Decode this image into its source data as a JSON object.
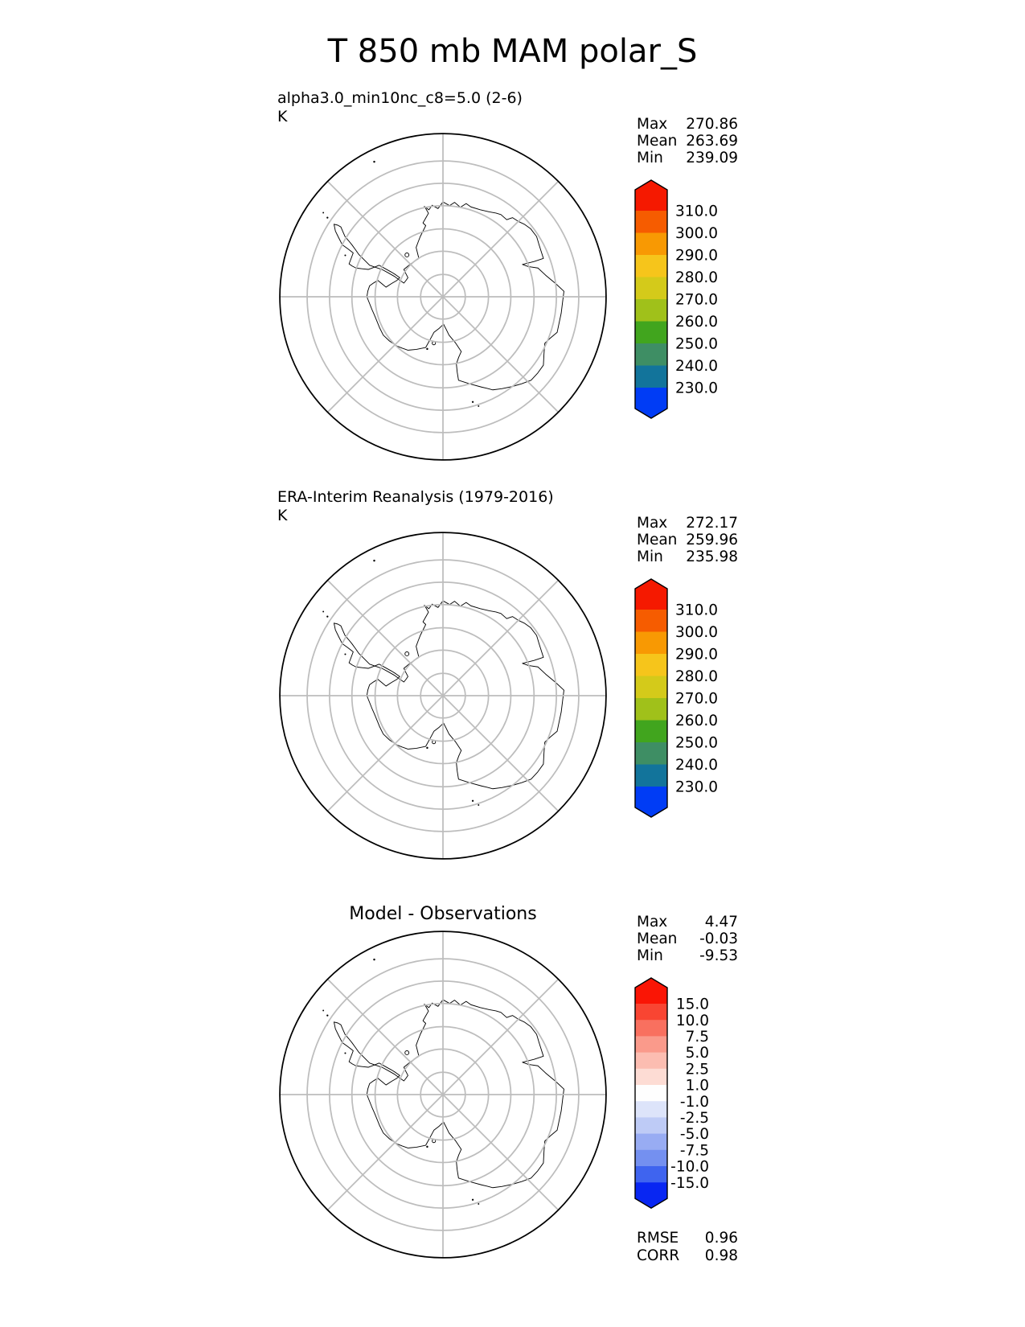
{
  "title": "T 850 mb MAM polar_S",
  "colors": {
    "background": "#ffffff",
    "gridline": "#bdbdbd",
    "coastline": "#000000",
    "temp_scale": [
      "#F51900",
      "#F65C00",
      "#F89903",
      "#F6C51B",
      "#D4CA1A",
      "#A0C11A",
      "#41A51E",
      "#3E8E64",
      "#12749B",
      "#003CF5"
    ],
    "diff_scale": [
      "#FA1505",
      "#F94532",
      "#F9705F",
      "#FA9A8B",
      "#FCBDB1",
      "#FDDCD4",
      "#FEFEFE",
      "#DDE4FA",
      "#BECBF6",
      "#98ACF3",
      "#7490F0",
      "#3F64EF",
      "#0826F2"
    ]
  },
  "panels": [
    {
      "label": "alpha3.0_min10nc_c8=5.0 (2-6)",
      "units": "K",
      "stats": [
        {
          "label": "Max",
          "value": "270.86"
        },
        {
          "label": "Mean",
          "value": "263.69"
        },
        {
          "label": "Min",
          "value": "239.09"
        }
      ],
      "colorbar_ticks": [
        "310.0",
        "300.0",
        "290.0",
        "280.0",
        "270.0",
        "260.0",
        "250.0",
        "240.0",
        "230.0"
      ]
    },
    {
      "label": "ERA-Interim Reanalysis (1979-2016)",
      "units": "K",
      "stats": [
        {
          "label": "Max",
          "value": "272.17"
        },
        {
          "label": "Mean",
          "value": "259.96"
        },
        {
          "label": "Min",
          "value": "235.98"
        }
      ],
      "colorbar_ticks": [
        "310.0",
        "300.0",
        "290.0",
        "280.0",
        "270.0",
        "260.0",
        "250.0",
        "240.0",
        "230.0"
      ]
    },
    {
      "label": "Model - Observations",
      "units": "",
      "stats": [
        {
          "label": "Max",
          "value": "4.47"
        },
        {
          "label": "Mean",
          "value": "-0.03"
        },
        {
          "label": "Min",
          "value": "-9.53"
        }
      ],
      "colorbar_ticks": [
        "15.0",
        "10.0",
        "7.5",
        "5.0",
        "2.5",
        "1.0",
        "-1.0",
        "-2.5",
        "-5.0",
        "-7.5",
        "-10.0",
        "-15.0"
      ]
    }
  ],
  "metrics": [
    {
      "label": "RMSE",
      "value": "0.96"
    },
    {
      "label": "CORR",
      "value": "0.98"
    }
  ],
  "chart_data": [
    {
      "type": "map",
      "projection_view": "south polar stereographic, Antarctica coastline with latitude circles and 45-degree longitude spokes",
      "title": "alpha3.0_min10nc_c8=5.0 (2-6)",
      "units": "K",
      "statistics": {
        "max": 270.86,
        "mean": 263.69,
        "min": 239.09
      },
      "colorbar_levels": [
        310.0,
        300.0,
        290.0,
        280.0,
        270.0,
        260.0,
        250.0,
        240.0,
        230.0
      ],
      "colorbar_style": "rainbow red-to-blue, extended arrows both ends"
    },
    {
      "type": "map",
      "projection_view": "south polar stereographic, Antarctica coastline with latitude circles and 45-degree longitude spokes",
      "title": "ERA-Interim Reanalysis (1979-2016)",
      "units": "K",
      "statistics": {
        "max": 272.17,
        "mean": 259.96,
        "min": 235.98
      },
      "colorbar_levels": [
        310.0,
        300.0,
        290.0,
        280.0,
        270.0,
        260.0,
        250.0,
        240.0,
        230.0
      ],
      "colorbar_style": "rainbow red-to-blue, extended arrows both ends"
    },
    {
      "type": "map",
      "projection_view": "south polar stereographic, Antarctica coastline with latitude circles and 45-degree longitude spokes",
      "title": "Model - Observations",
      "units": "",
      "statistics": {
        "max": 4.47,
        "mean": -0.03,
        "min": -9.53,
        "rmse": 0.96,
        "corr": 0.98
      },
      "colorbar_levels": [
        15.0,
        10.0,
        7.5,
        5.0,
        2.5,
        1.0,
        -1.0,
        -2.5,
        -5.0,
        -7.5,
        -10.0,
        -15.0
      ],
      "colorbar_style": "diverging red-white-blue, extended arrows both ends"
    }
  ]
}
